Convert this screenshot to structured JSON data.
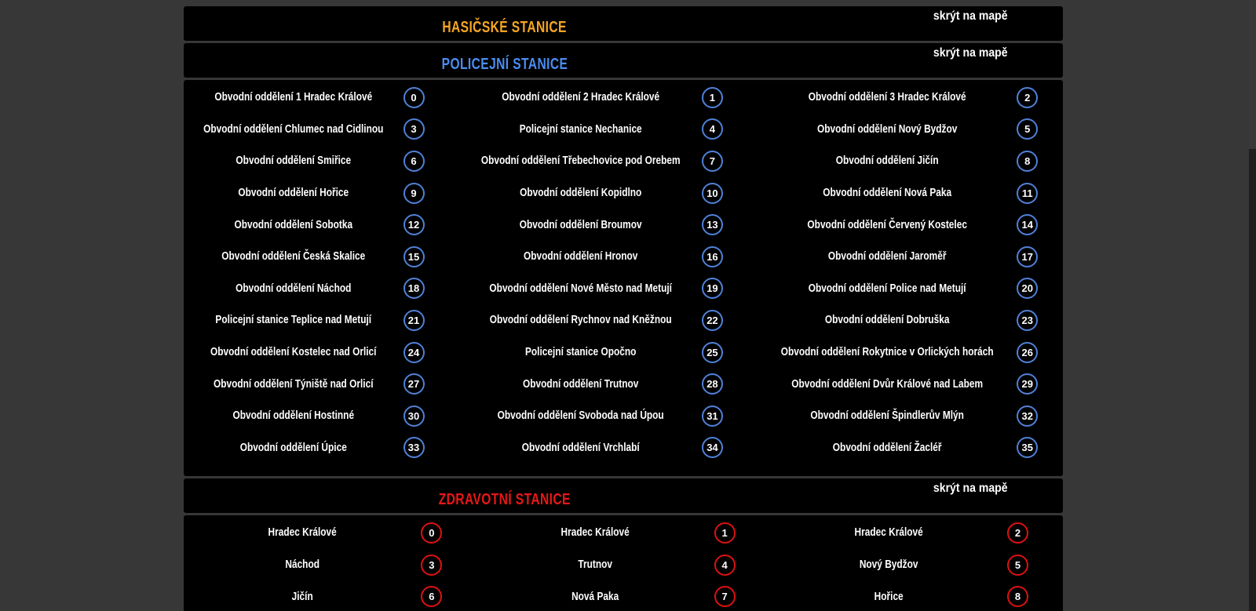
{
  "page": {
    "background_color": "#373737",
    "panel_color": "#000000",
    "text_color": "#ffffff"
  },
  "sections": {
    "fire": {
      "title": "HASIČSKÉ STANICE",
      "title_color": "#f6a623",
      "link": "skrýt na mapě",
      "items": []
    },
    "police": {
      "title": "POLICEJNÍ STANICE",
      "title_color": "#4a8df0",
      "badge_border_color": "#4f81d8",
      "link": "skrýt na mapě",
      "items": [
        {
          "label": "Obvodní oddělení 1 Hradec Králové",
          "num": "0"
        },
        {
          "label": "Obvodní oddělení 2 Hradec Králové",
          "num": "1"
        },
        {
          "label": "Obvodní oddělení 3 Hradec Králové",
          "num": "2"
        },
        {
          "label": "Obvodní oddělení Chlumec nad Cidlinou",
          "num": "3"
        },
        {
          "label": "Policejní stanice Nechanice",
          "num": "4"
        },
        {
          "label": "Obvodní oddělení Nový Bydžov",
          "num": "5"
        },
        {
          "label": "Obvodní oddělení Smiřice",
          "num": "6"
        },
        {
          "label": "Obvodní oddělení Třebechovice pod Orebem",
          "num": "7"
        },
        {
          "label": "Obvodní oddělení Jičín",
          "num": "8"
        },
        {
          "label": "Obvodní oddělení Hořice",
          "num": "9"
        },
        {
          "label": "Obvodní oddělení Kopidlno",
          "num": "10"
        },
        {
          "label": "Obvodní oddělení Nová Paka",
          "num": "11"
        },
        {
          "label": "Obvodní oddělení Sobotka",
          "num": "12"
        },
        {
          "label": "Obvodní oddělení Broumov",
          "num": "13"
        },
        {
          "label": "Obvodní oddělení Červený Kostelec",
          "num": "14"
        },
        {
          "label": "Obvodní oddělení Česká Skalice",
          "num": "15"
        },
        {
          "label": "Obvodní oddělení Hronov",
          "num": "16"
        },
        {
          "label": "Obvodní oddělení Jaroměř",
          "num": "17"
        },
        {
          "label": "Obvodní oddělení Náchod",
          "num": "18"
        },
        {
          "label": "Obvodní oddělení Nové Město nad Metují",
          "num": "19"
        },
        {
          "label": "Obvodní oddělení Police nad Metují",
          "num": "20"
        },
        {
          "label": "Policejní stanice Teplice nad Metují",
          "num": "21"
        },
        {
          "label": "Obvodní oddělení Rychnov nad Kněžnou",
          "num": "22"
        },
        {
          "label": "Obvodní oddělení Dobruška",
          "num": "23"
        },
        {
          "label": "Obvodní oddělení Kostelec nad Orlicí",
          "num": "24"
        },
        {
          "label": "Policejní stanice Opočno",
          "num": "25"
        },
        {
          "label": "Obvodní oddělení Rokytnice v Orlických horách",
          "num": "26"
        },
        {
          "label": "Obvodní oddělení Týniště nad Orlicí",
          "num": "27"
        },
        {
          "label": "Obvodní oddělení Trutnov",
          "num": "28"
        },
        {
          "label": "Obvodní oddělení Dvůr Králové nad Labem",
          "num": "29"
        },
        {
          "label": "Obvodní oddělení Hostinné",
          "num": "30"
        },
        {
          "label": "Obvodní oddělení Svoboda nad Úpou",
          "num": "31"
        },
        {
          "label": "Obvodní oddělení Špindlerův Mlýn",
          "num": "32"
        },
        {
          "label": "Obvodní oddělení Úpice",
          "num": "33"
        },
        {
          "label": "Obvodní oddělení Vrchlabí",
          "num": "34"
        },
        {
          "label": "Obvodní oddělení Žacléř",
          "num": "35"
        }
      ]
    },
    "health": {
      "title": "ZDRAVOTNÍ STANICE",
      "title_color": "#e81717",
      "badge_border_color": "#dd1111",
      "link": "skrýt na mapě",
      "items": [
        {
          "label": "Hradec Králové",
          "num": "0"
        },
        {
          "label": "Hradec Králové",
          "num": "1"
        },
        {
          "label": "Hradec Králové",
          "num": "2"
        },
        {
          "label": "Náchod",
          "num": "3"
        },
        {
          "label": "Trutnov",
          "num": "4"
        },
        {
          "label": "Nový Bydžov",
          "num": "5"
        },
        {
          "label": "Jičín",
          "num": "6"
        },
        {
          "label": "Nová Paka",
          "num": "7"
        },
        {
          "label": "Hořice",
          "num": "8"
        }
      ]
    }
  }
}
